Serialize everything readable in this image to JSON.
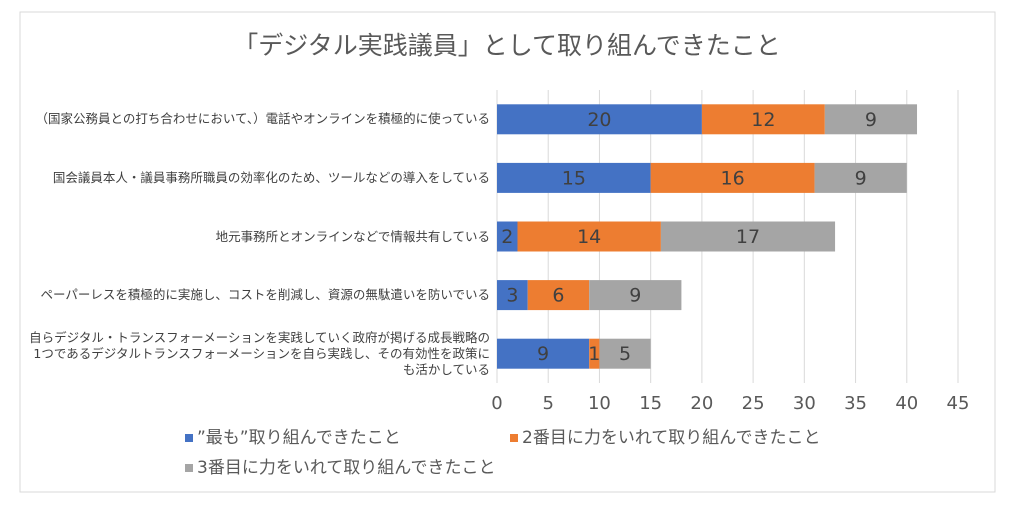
{
  "chart_data": {
    "type": "bar",
    "orientation": "horizontal",
    "stacked": true,
    "title": "「デジタル実践議員」として取り組んできたこと",
    "categories": [
      "（国家公務員との打ち合わせにおいて、）電話やオンラインを積極的に使っている",
      "国会議員本人・議員事務所職員の効率化のため、ツールなどの導入をしている",
      "地元事務所とオンラインなどで情報共有している",
      "ペーパーレスを積極的に実施し、コストを削減し、資源の無駄遣いを防いでいる",
      "自らデジタル・トランスフォーメーションを実践していく政府が掲げる成長戦略の1つであるデジタルトランスフォーメーションを自ら実践し、その有効性を政策にも活かしている"
    ],
    "series": [
      {
        "name": "”最も”取り組んできたこと",
        "color": "#4472c4",
        "values": [
          20,
          15,
          2,
          3,
          9
        ]
      },
      {
        "name": "2番目に力をいれて取り組んできたこと",
        "color": "#ed7d31",
        "values": [
          12,
          16,
          14,
          6,
          1
        ]
      },
      {
        "name": "3番目に力をいれて取り組んできたこと",
        "color": "#a5a5a5",
        "values": [
          9,
          9,
          17,
          9,
          5
        ]
      }
    ],
    "xlim": [
      0,
      45
    ],
    "xticks": [
      0,
      5,
      10,
      15,
      20,
      25,
      30,
      35,
      40,
      45
    ],
    "grid": true,
    "legend": "bottom"
  }
}
